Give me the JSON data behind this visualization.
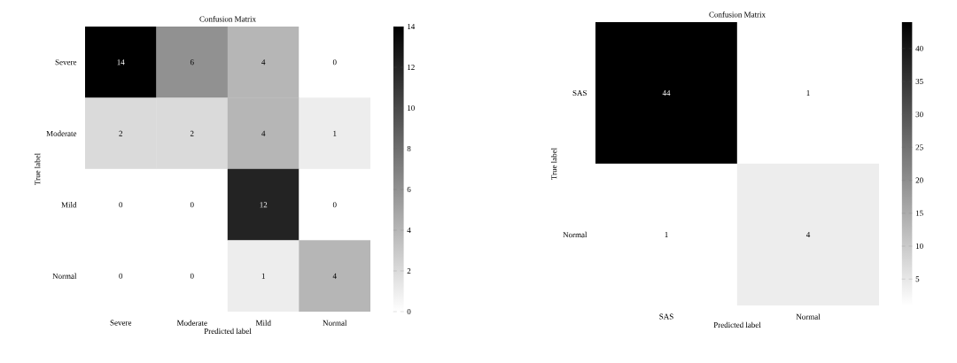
{
  "chart_data": [
    {
      "type": "heatmap",
      "title": "Confusion Matrix",
      "xlabel": "Predicted label",
      "ylabel": "True label",
      "categories": [
        "Severe",
        "Moderate",
        "Mild",
        "Normal"
      ],
      "y_categories": [
        "Severe",
        "Moderate",
        "Mild",
        "Normal"
      ],
      "cells": [
        [
          14,
          6,
          4,
          0
        ],
        [
          2,
          2,
          4,
          1
        ],
        [
          0,
          0,
          12,
          0
        ],
        [
          0,
          0,
          1,
          4
        ]
      ],
      "data_labels": true,
      "clim": [
        0,
        14
      ],
      "cticks": [
        0,
        2,
        4,
        6,
        8,
        10,
        12,
        14
      ]
    },
    {
      "type": "heatmap",
      "title": "Confusion Matrix",
      "xlabel": "Predicted label",
      "ylabel": "True label",
      "categories": [
        "SAS",
        "Normal"
      ],
      "y_categories": [
        "SAS",
        "Normal"
      ],
      "cells": [
        [
          44,
          1
        ],
        [
          1,
          4
        ]
      ],
      "data_labels": true,
      "clim": [
        1,
        44
      ],
      "cticks": [
        5,
        10,
        15,
        20,
        25,
        30,
        35,
        40
      ]
    }
  ]
}
